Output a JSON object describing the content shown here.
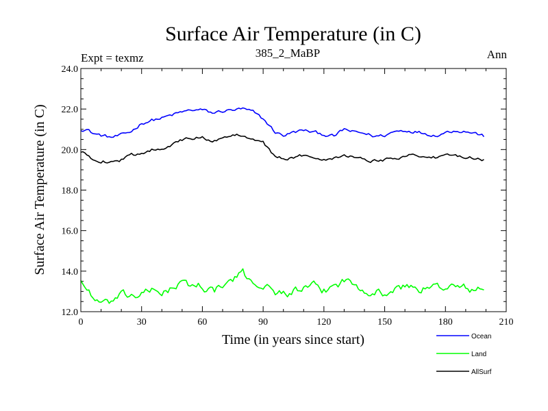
{
  "chart_data": {
    "type": "line",
    "title": "Surface Air Temperature (in C)",
    "subtitle": "385_2_MaBP",
    "left_label": "Expt = texmz",
    "right_label": "Ann",
    "xlabel": "Time (in years since start)",
    "ylabel": "Surface Air Temperature (in C)",
    "xlim": [
      0,
      210
    ],
    "ylim": [
      12.0,
      24.0
    ],
    "xticks": [
      0,
      30,
      60,
      90,
      120,
      150,
      180,
      210
    ],
    "xtick_labels": [
      "0",
      "30",
      "60",
      "90",
      "120",
      "150",
      "180",
      "210"
    ],
    "yticks": [
      12,
      14,
      16,
      18,
      20,
      22,
      24
    ],
    "ytick_labels": [
      "12.0",
      "14.0",
      "16.0",
      "18.0",
      "20.0",
      "22.0",
      "24.0"
    ],
    "legend_position": "bottom-right",
    "series": [
      {
        "name": "Ocean",
        "color": "#0000ff",
        "anchors": [
          [
            0,
            21.0
          ],
          [
            3,
            21.0
          ],
          [
            6,
            20.8
          ],
          [
            10,
            20.7
          ],
          [
            15,
            20.6
          ],
          [
            20,
            20.7
          ],
          [
            25,
            20.9
          ],
          [
            30,
            21.3
          ],
          [
            35,
            21.45
          ],
          [
            40,
            21.55
          ],
          [
            45,
            21.7
          ],
          [
            50,
            21.85
          ],
          [
            55,
            21.95
          ],
          [
            60,
            21.95
          ],
          [
            65,
            21.8
          ],
          [
            70,
            21.9
          ],
          [
            75,
            21.95
          ],
          [
            80,
            22.0
          ],
          [
            85,
            21.85
          ],
          [
            90,
            21.5
          ],
          [
            93,
            21.2
          ],
          [
            96,
            20.85
          ],
          [
            100,
            20.7
          ],
          [
            105,
            20.85
          ],
          [
            110,
            20.95
          ],
          [
            115,
            20.85
          ],
          [
            120,
            20.75
          ],
          [
            125,
            20.65
          ],
          [
            130,
            21.0
          ],
          [
            135,
            20.85
          ],
          [
            140,
            20.8
          ],
          [
            145,
            20.65
          ],
          [
            150,
            20.7
          ],
          [
            155,
            20.9
          ],
          [
            160,
            20.95
          ],
          [
            165,
            20.9
          ],
          [
            170,
            20.8
          ],
          [
            175,
            20.7
          ],
          [
            180,
            20.85
          ],
          [
            185,
            20.95
          ],
          [
            190,
            20.9
          ],
          [
            195,
            20.8
          ],
          [
            199,
            20.65
          ]
        ],
        "noise": 0.07
      },
      {
        "name": "Land",
        "color": "#00ff00",
        "anchors": [
          [
            0,
            13.6
          ],
          [
            2,
            13.2
          ],
          [
            5,
            12.9
          ],
          [
            8,
            12.5
          ],
          [
            12,
            12.35
          ],
          [
            16,
            12.55
          ],
          [
            20,
            12.75
          ],
          [
            25,
            12.8
          ],
          [
            30,
            12.85
          ],
          [
            35,
            13.0
          ],
          [
            40,
            13.0
          ],
          [
            45,
            13.15
          ],
          [
            50,
            13.35
          ],
          [
            55,
            13.3
          ],
          [
            60,
            13.3
          ],
          [
            65,
            13.0
          ],
          [
            70,
            13.2
          ],
          [
            75,
            13.6
          ],
          [
            80,
            13.85
          ],
          [
            85,
            13.5
          ],
          [
            90,
            13.3
          ],
          [
            95,
            13.0
          ],
          [
            100,
            12.9
          ],
          [
            105,
            13.0
          ],
          [
            110,
            13.1
          ],
          [
            115,
            13.2
          ],
          [
            120,
            13.0
          ],
          [
            125,
            13.3
          ],
          [
            130,
            13.55
          ],
          [
            135,
            13.35
          ],
          [
            140,
            13.15
          ],
          [
            145,
            13.0
          ],
          [
            150,
            12.9
          ],
          [
            155,
            13.05
          ],
          [
            160,
            13.25
          ],
          [
            165,
            13.2
          ],
          [
            170,
            13.1
          ],
          [
            175,
            13.2
          ],
          [
            180,
            13.3
          ],
          [
            185,
            13.2
          ],
          [
            190,
            13.15
          ],
          [
            195,
            13.05
          ],
          [
            199,
            13.05
          ]
        ],
        "noise": 0.18
      },
      {
        "name": "AllSurf",
        "color": "#000000",
        "anchors": [
          [
            0,
            19.85
          ],
          [
            3,
            19.75
          ],
          [
            6,
            19.55
          ],
          [
            10,
            19.45
          ],
          [
            15,
            19.4
          ],
          [
            20,
            19.5
          ],
          [
            25,
            19.7
          ],
          [
            30,
            19.85
          ],
          [
            35,
            20.0
          ],
          [
            40,
            20.1
          ],
          [
            45,
            20.25
          ],
          [
            50,
            20.45
          ],
          [
            55,
            20.55
          ],
          [
            60,
            20.6
          ],
          [
            65,
            20.45
          ],
          [
            70,
            20.55
          ],
          [
            75,
            20.65
          ],
          [
            80,
            20.75
          ],
          [
            85,
            20.55
          ],
          [
            90,
            20.35
          ],
          [
            93,
            20.0
          ],
          [
            96,
            19.6
          ],
          [
            100,
            19.55
          ],
          [
            105,
            19.6
          ],
          [
            110,
            19.7
          ],
          [
            115,
            19.65
          ],
          [
            120,
            19.55
          ],
          [
            125,
            19.6
          ],
          [
            130,
            19.75
          ],
          [
            135,
            19.65
          ],
          [
            140,
            19.5
          ],
          [
            145,
            19.45
          ],
          [
            150,
            19.5
          ],
          [
            155,
            19.6
          ],
          [
            160,
            19.7
          ],
          [
            165,
            19.75
          ],
          [
            170,
            19.65
          ],
          [
            175,
            19.6
          ],
          [
            180,
            19.65
          ],
          [
            185,
            19.7
          ],
          [
            190,
            19.65
          ],
          [
            195,
            19.6
          ],
          [
            199,
            19.5
          ]
        ],
        "noise": 0.07
      }
    ]
  }
}
